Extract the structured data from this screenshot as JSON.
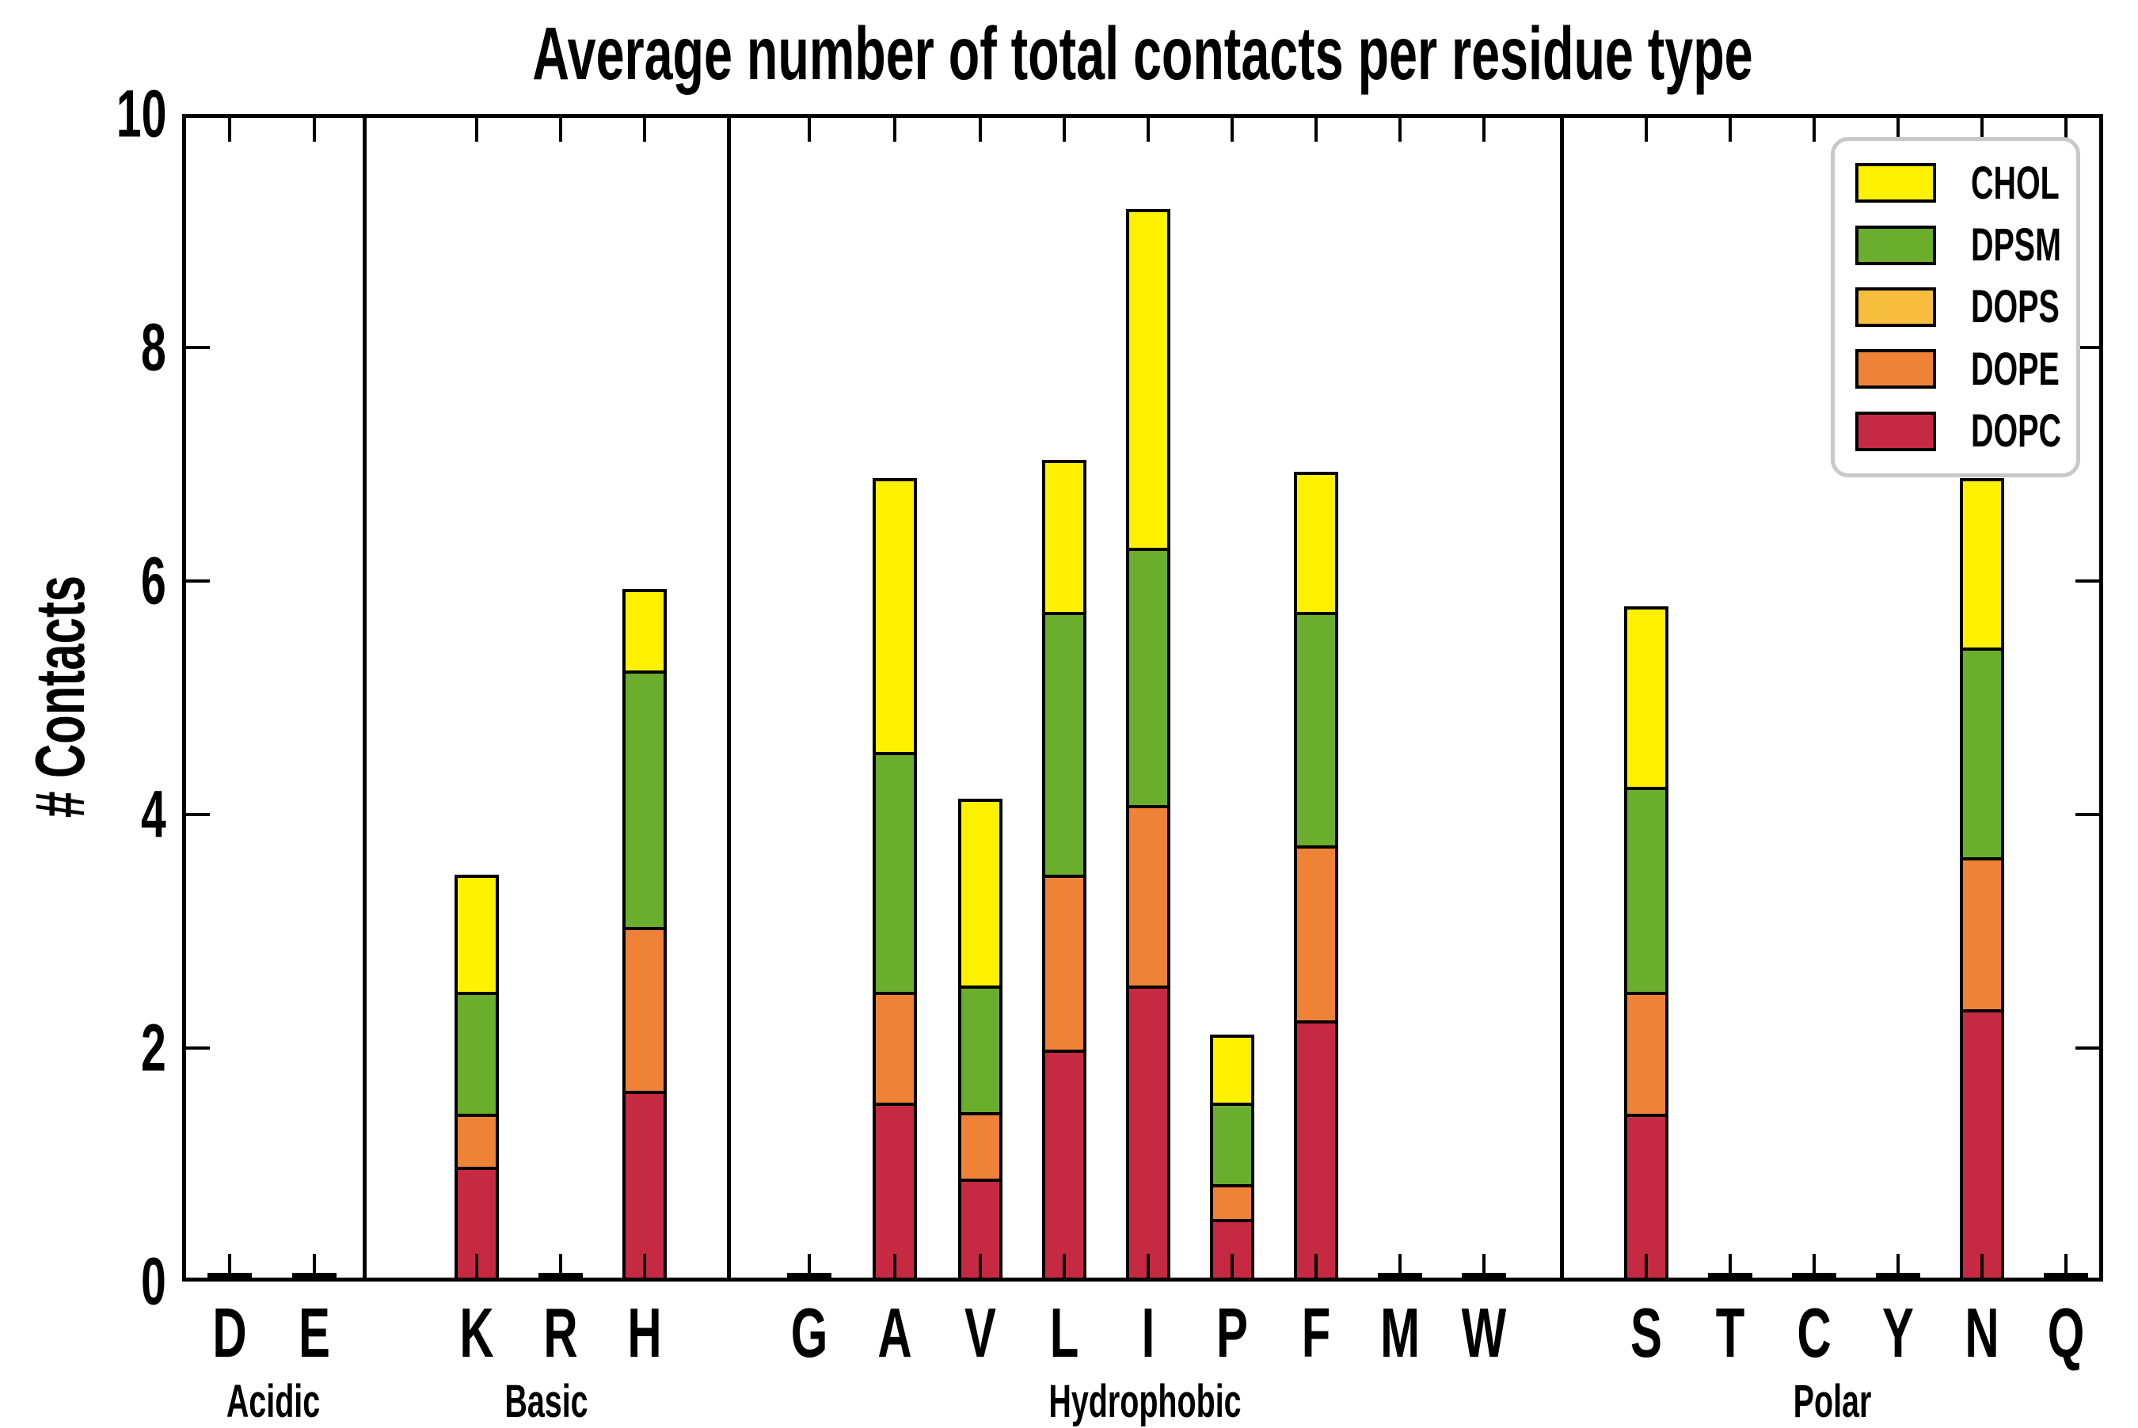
{
  "chart_data": {
    "type": "bar",
    "stacked": true,
    "title": "Average number of total contacts per residue type",
    "ylabel": "# Contacts",
    "ylim": [
      0,
      10
    ],
    "yticks": [
      0,
      2,
      4,
      6,
      8,
      10
    ],
    "grid": false,
    "legend": {
      "position": "upper right",
      "entries": [
        "CHOL",
        "DPSM",
        "DOPS",
        "DOPE",
        "DOPC"
      ]
    },
    "groups": [
      {
        "label": "Acidic",
        "residues": [
          "D",
          "E"
        ]
      },
      {
        "label": "Basic",
        "residues": [
          "K",
          "R",
          "H"
        ]
      },
      {
        "label": "Hydrophobic",
        "residues": [
          "G",
          "A",
          "V",
          "L",
          "I",
          "P",
          "F",
          "M",
          "W"
        ]
      },
      {
        "label": "Polar",
        "residues": [
          "S",
          "T",
          "C",
          "Y",
          "N",
          "Q"
        ]
      }
    ],
    "categories": [
      "D",
      "E",
      "K",
      "R",
      "H",
      "G",
      "A",
      "V",
      "L",
      "I",
      "P",
      "F",
      "M",
      "W",
      "S",
      "T",
      "C",
      "Y",
      "N",
      "Q"
    ],
    "series": [
      {
        "name": "DOPC",
        "color": "#c62a42",
        "values": [
          0.04,
          0.04,
          0.95,
          0.04,
          1.6,
          0.04,
          1.5,
          0.85,
          1.95,
          2.5,
          0.5,
          2.2,
          0.04,
          0.04,
          1.4,
          0.04,
          0.04,
          0.04,
          2.3,
          0.04
        ]
      },
      {
        "name": "DOPE",
        "color": "#ee8337",
        "values": [
          0,
          0,
          0.45,
          0,
          1.4,
          0,
          0.95,
          0.57,
          1.5,
          1.55,
          0.3,
          1.5,
          0,
          0,
          1.05,
          0,
          0,
          0,
          1.3,
          0
        ]
      },
      {
        "name": "DOPS",
        "color": "#f6bd3f",
        "values": [
          0,
          0,
          0,
          0,
          0,
          0,
          0,
          0,
          0,
          0,
          0,
          0,
          0,
          0,
          0,
          0,
          0,
          0,
          0,
          0
        ]
      },
      {
        "name": "DPSM",
        "color": "#6bad2c",
        "values": [
          0,
          0,
          1.05,
          0,
          2.2,
          0,
          2.05,
          1.08,
          2.25,
          2.2,
          0.7,
          2.0,
          0,
          0,
          1.75,
          0,
          0,
          0,
          1.8,
          0
        ]
      },
      {
        "name": "CHOL",
        "color": "#fff100",
        "values": [
          0,
          0,
          1.0,
          0,
          0.7,
          0,
          2.35,
          1.6,
          1.3,
          2.9,
          0.58,
          1.2,
          0,
          0,
          1.55,
          0,
          0,
          0,
          1.45,
          0
        ]
      }
    ]
  }
}
